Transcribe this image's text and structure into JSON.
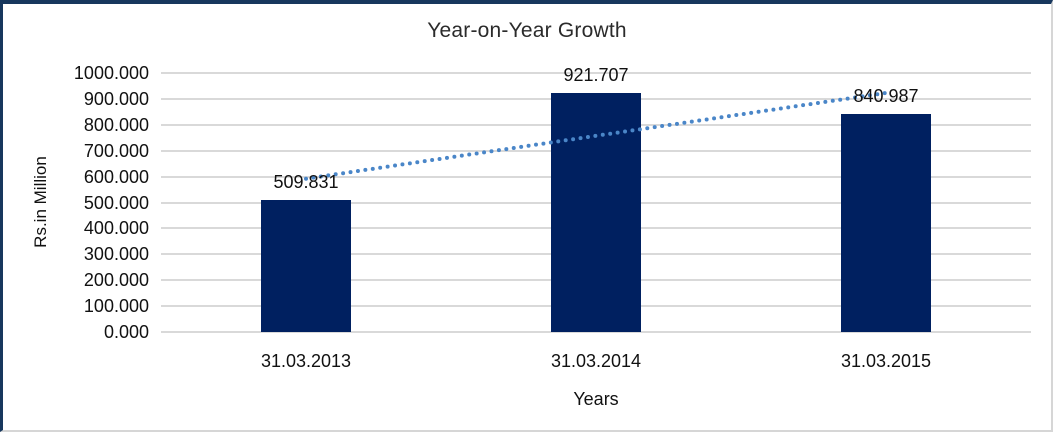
{
  "chart_data": {
    "type": "bar",
    "title": "Year-on-Year Growth",
    "xlabel": "Years",
    "ylabel": "Rs.in Million",
    "categories": [
      "31.03.2013",
      "31.03.2014",
      "31.03.2015"
    ],
    "values": [
      509.831,
      921.707,
      840.987
    ],
    "data_labels": [
      "509.831",
      "921.707",
      "840.987"
    ],
    "ylim": [
      0,
      1000
    ],
    "yticks": [
      {
        "value": 1000,
        "label": "1000.000"
      },
      {
        "value": 900,
        "label": "900.000"
      },
      {
        "value": 800,
        "label": "800.000"
      },
      {
        "value": 700,
        "label": "700.000"
      },
      {
        "value": 600,
        "label": "600.000"
      },
      {
        "value": 500,
        "label": "500.000"
      },
      {
        "value": 400,
        "label": "400.000"
      },
      {
        "value": 300,
        "label": "300.000"
      },
      {
        "value": 200,
        "label": "200.000"
      },
      {
        "value": 100,
        "label": "100.000"
      },
      {
        "value": 0,
        "label": "0.000"
      }
    ],
    "grid": true,
    "legend": "none",
    "bar_color": "#002060",
    "gridline_color": "#d9d9d9",
    "trendline": {
      "type": "linear",
      "style": "dotted",
      "color": "#4a86c8"
    }
  }
}
